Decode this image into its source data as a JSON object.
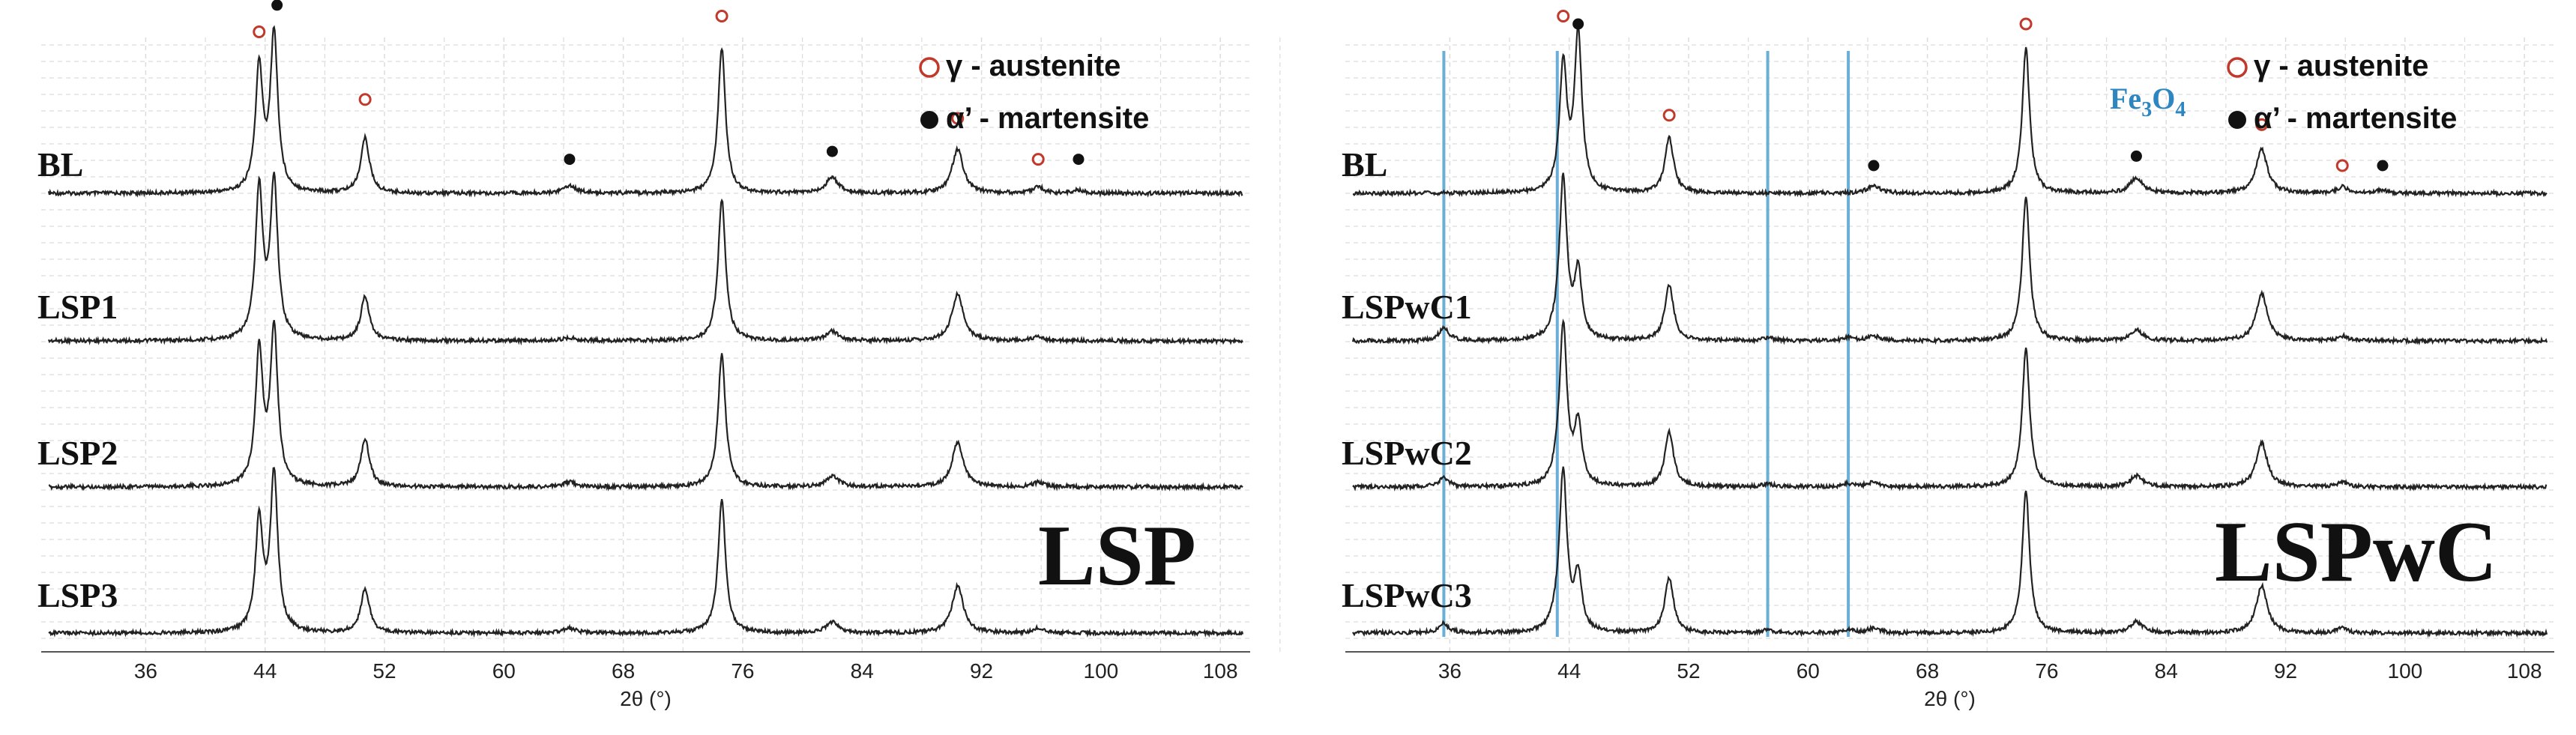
{
  "chart_data": [
    {
      "type": "line",
      "big_label": "LSP",
      "xlabel": "2θ (°)",
      "x_range": [
        29,
        110
      ],
      "x_ticks": [
        36,
        44,
        52,
        60,
        68,
        76,
        84,
        92,
        100,
        108
      ],
      "legend": {
        "austenite": "γ - austenite",
        "martensite": "α’ - martensite"
      },
      "peaks": [
        {
          "x": 43.6,
          "h": 0.78,
          "w": 0.3
        },
        {
          "x": 44.6,
          "h": 1.0,
          "w": 0.3
        },
        {
          "x": 50.7,
          "h": 0.35,
          "w": 0.35
        },
        {
          "x": 64.4,
          "h": 0.05,
          "w": 0.5
        },
        {
          "x": 74.6,
          "h": 0.92,
          "w": 0.3
        },
        {
          "x": 82.0,
          "h": 0.1,
          "w": 0.5
        },
        {
          "x": 90.4,
          "h": 0.28,
          "w": 0.45
        },
        {
          "x": 95.8,
          "h": 0.04,
          "w": 0.4
        },
        {
          "x": 98.5,
          "h": 0.02,
          "w": 0.4
        }
      ],
      "series": [
        {
          "name": "BL",
          "heights": [
            0.78,
            1.0,
            0.35,
            0.05,
            0.92,
            0.1,
            0.28,
            0.04,
            0.02
          ]
        },
        {
          "name": "LSP1",
          "heights": [
            0.95,
            1.0,
            0.28,
            0.02,
            0.9,
            0.06,
            0.3,
            0.03,
            0.0
          ]
        },
        {
          "name": "LSP2",
          "heights": [
            0.85,
            1.0,
            0.3,
            0.03,
            0.85,
            0.07,
            0.28,
            0.03,
            0.0
          ]
        },
        {
          "name": "LSP3",
          "heights": [
            0.7,
            1.0,
            0.28,
            0.03,
            0.85,
            0.07,
            0.3,
            0.03,
            0.0
          ]
        }
      ],
      "markers": [
        {
          "kind": "austenite",
          "x": 43.6,
          "row": 0,
          "h": 0.95
        },
        {
          "kind": "martensite",
          "x": 44.8,
          "row": 0,
          "h": 1.12
        },
        {
          "kind": "austenite",
          "x": 50.7,
          "row": 0,
          "h": 0.52
        },
        {
          "kind": "martensite",
          "x": 64.4,
          "row": 0,
          "h": 0.14
        },
        {
          "kind": "austenite",
          "x": 74.6,
          "row": 0,
          "h": 1.05
        },
        {
          "kind": "martensite",
          "x": 82.0,
          "row": 0,
          "h": 0.19
        },
        {
          "kind": "austenite",
          "x": 90.4,
          "row": 0,
          "h": 0.4
        },
        {
          "kind": "austenite",
          "x": 95.8,
          "row": 0,
          "h": 0.14
        },
        {
          "kind": "martensite",
          "x": 98.5,
          "row": 0,
          "h": 0.14
        }
      ],
      "vlines": []
    },
    {
      "type": "line",
      "big_label": "LSPwC",
      "xlabel": "2θ (°)",
      "x_range": [
        29,
        110
      ],
      "x_ticks": [
        36,
        44,
        52,
        60,
        68,
        76,
        84,
        92,
        100,
        108
      ],
      "legend": {
        "austenite": "γ - austenite",
        "martensite": "α’ - martensite",
        "extra": "Fe3O4"
      },
      "peaks": [
        {
          "x": 35.6,
          "h": 0.06,
          "w": 0.4
        },
        {
          "x": 43.2,
          "h": 0.04,
          "w": 0.4
        },
        {
          "x": 43.6,
          "h": 0.78,
          "w": 0.3
        },
        {
          "x": 44.6,
          "h": 1.0,
          "w": 0.3
        },
        {
          "x": 50.7,
          "h": 0.35,
          "w": 0.35
        },
        {
          "x": 57.3,
          "h": 0.02,
          "w": 0.4
        },
        {
          "x": 62.7,
          "h": 0.03,
          "w": 0.4
        },
        {
          "x": 64.4,
          "h": 0.05,
          "w": 0.5
        },
        {
          "x": 74.6,
          "h": 0.92,
          "w": 0.3
        },
        {
          "x": 82.0,
          "h": 0.1,
          "w": 0.5
        },
        {
          "x": 90.4,
          "h": 0.28,
          "w": 0.45
        },
        {
          "x": 95.8,
          "h": 0.04,
          "w": 0.4
        },
        {
          "x": 98.5,
          "h": 0.02,
          "w": 0.4
        }
      ],
      "series": [
        {
          "name": "BL",
          "heights": [
            0.0,
            0.0,
            0.8,
            1.0,
            0.35,
            0.0,
            0.0,
            0.05,
            0.92,
            0.1,
            0.28,
            0.04,
            0.02
          ]
        },
        {
          "name": "LSPwC1",
          "heights": [
            0.08,
            0.05,
            1.0,
            0.42,
            0.35,
            0.02,
            0.02,
            0.03,
            0.92,
            0.07,
            0.3,
            0.03,
            0.0
          ]
        },
        {
          "name": "LSPwC2",
          "heights": [
            0.06,
            0.05,
            1.0,
            0.38,
            0.35,
            0.02,
            0.02,
            0.03,
            0.88,
            0.07,
            0.28,
            0.03,
            0.0
          ]
        },
        {
          "name": "LSPwC3",
          "heights": [
            0.06,
            0.06,
            1.0,
            0.35,
            0.35,
            0.02,
            0.02,
            0.03,
            0.9,
            0.07,
            0.3,
            0.03,
            0.0
          ]
        }
      ],
      "markers": [
        {
          "kind": "austenite",
          "x": 43.6,
          "row": 0,
          "h": 1.05
        },
        {
          "kind": "martensite",
          "x": 44.6,
          "row": 0,
          "h": 1.0
        },
        {
          "kind": "austenite",
          "x": 50.7,
          "row": 0,
          "h": 0.42
        },
        {
          "kind": "martensite",
          "x": 64.4,
          "row": 0,
          "h": 0.1
        },
        {
          "kind": "austenite",
          "x": 74.6,
          "row": 0,
          "h": 1.0
        },
        {
          "kind": "martensite",
          "x": 82.0,
          "row": 0,
          "h": 0.16
        },
        {
          "kind": "austenite",
          "x": 90.4,
          "row": 0,
          "h": 0.36
        },
        {
          "kind": "austenite",
          "x": 95.8,
          "row": 0,
          "h": 0.1
        },
        {
          "kind": "martensite",
          "x": 98.5,
          "row": 0,
          "h": 0.1
        }
      ],
      "vlines": [
        35.6,
        43.2,
        57.3,
        62.7
      ]
    }
  ],
  "colors": {
    "trace": "#222222",
    "grid": "#dcdcdc",
    "austenite": "#c0392b",
    "martensite": "#111111",
    "fe3o4": "#2e86c1",
    "vline": "#6baed6",
    "axis": "#555555"
  }
}
